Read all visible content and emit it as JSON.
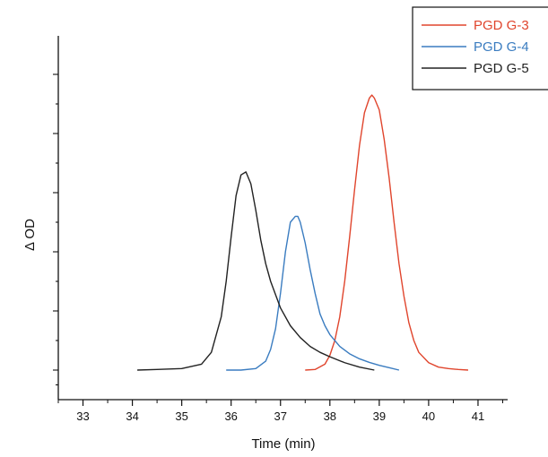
{
  "chart_data": {
    "type": "line",
    "xlabel": "Time (min)",
    "ylabel": "Δ OD",
    "xlim": [
      32.5,
      41.6
    ],
    "ylim": [
      0,
      1.0
    ],
    "x_ticks": [
      "33",
      "34",
      "35",
      "36",
      "37",
      "38",
      "39",
      "40",
      "41"
    ],
    "y_ticks_shown": false,
    "grid": false,
    "legend_position": "top-right",
    "series": [
      {
        "name": "PGD G-3",
        "color": "#e0452d",
        "x": [
          37.5,
          37.7,
          37.9,
          38.0,
          38.1,
          38.2,
          38.3,
          38.4,
          38.5,
          38.6,
          38.7,
          38.8,
          38.85,
          38.9,
          39.0,
          39.1,
          39.2,
          39.3,
          39.4,
          39.5,
          39.6,
          39.7,
          39.8,
          40.0,
          40.2,
          40.4,
          40.6,
          40.8
        ],
        "values": [
          0.0,
          0.002,
          0.02,
          0.05,
          0.1,
          0.18,
          0.3,
          0.45,
          0.61,
          0.76,
          0.87,
          0.92,
          0.93,
          0.92,
          0.88,
          0.78,
          0.65,
          0.5,
          0.36,
          0.25,
          0.16,
          0.1,
          0.06,
          0.025,
          0.01,
          0.005,
          0.002,
          0.0
        ]
      },
      {
        "name": "PGD G-4",
        "color": "#3a7cc0",
        "x": [
          35.9,
          36.2,
          36.5,
          36.7,
          36.8,
          36.9,
          37.0,
          37.1,
          37.2,
          37.3,
          37.35,
          37.4,
          37.5,
          37.6,
          37.7,
          37.8,
          37.9,
          38.0,
          38.2,
          38.4,
          38.6,
          38.8,
          39.0,
          39.2,
          39.4
        ],
        "values": [
          0.0,
          0.0,
          0.005,
          0.03,
          0.07,
          0.14,
          0.26,
          0.4,
          0.5,
          0.52,
          0.52,
          0.5,
          0.43,
          0.34,
          0.26,
          0.19,
          0.15,
          0.12,
          0.08,
          0.055,
          0.038,
          0.026,
          0.016,
          0.008,
          0.0
        ]
      },
      {
        "name": "PGD G-5",
        "color": "#222222",
        "x": [
          34.1,
          34.5,
          35.0,
          35.4,
          35.6,
          35.8,
          35.9,
          36.0,
          36.1,
          36.2,
          36.3,
          36.4,
          36.5,
          36.6,
          36.7,
          36.8,
          37.0,
          37.2,
          37.4,
          37.6,
          37.8,
          38.0,
          38.3,
          38.6,
          38.9
        ],
        "values": [
          0.0,
          0.002,
          0.005,
          0.02,
          0.06,
          0.18,
          0.3,
          0.45,
          0.59,
          0.66,
          0.67,
          0.63,
          0.54,
          0.44,
          0.36,
          0.3,
          0.21,
          0.15,
          0.11,
          0.08,
          0.06,
          0.045,
          0.025,
          0.01,
          0.0
        ]
      }
    ]
  }
}
